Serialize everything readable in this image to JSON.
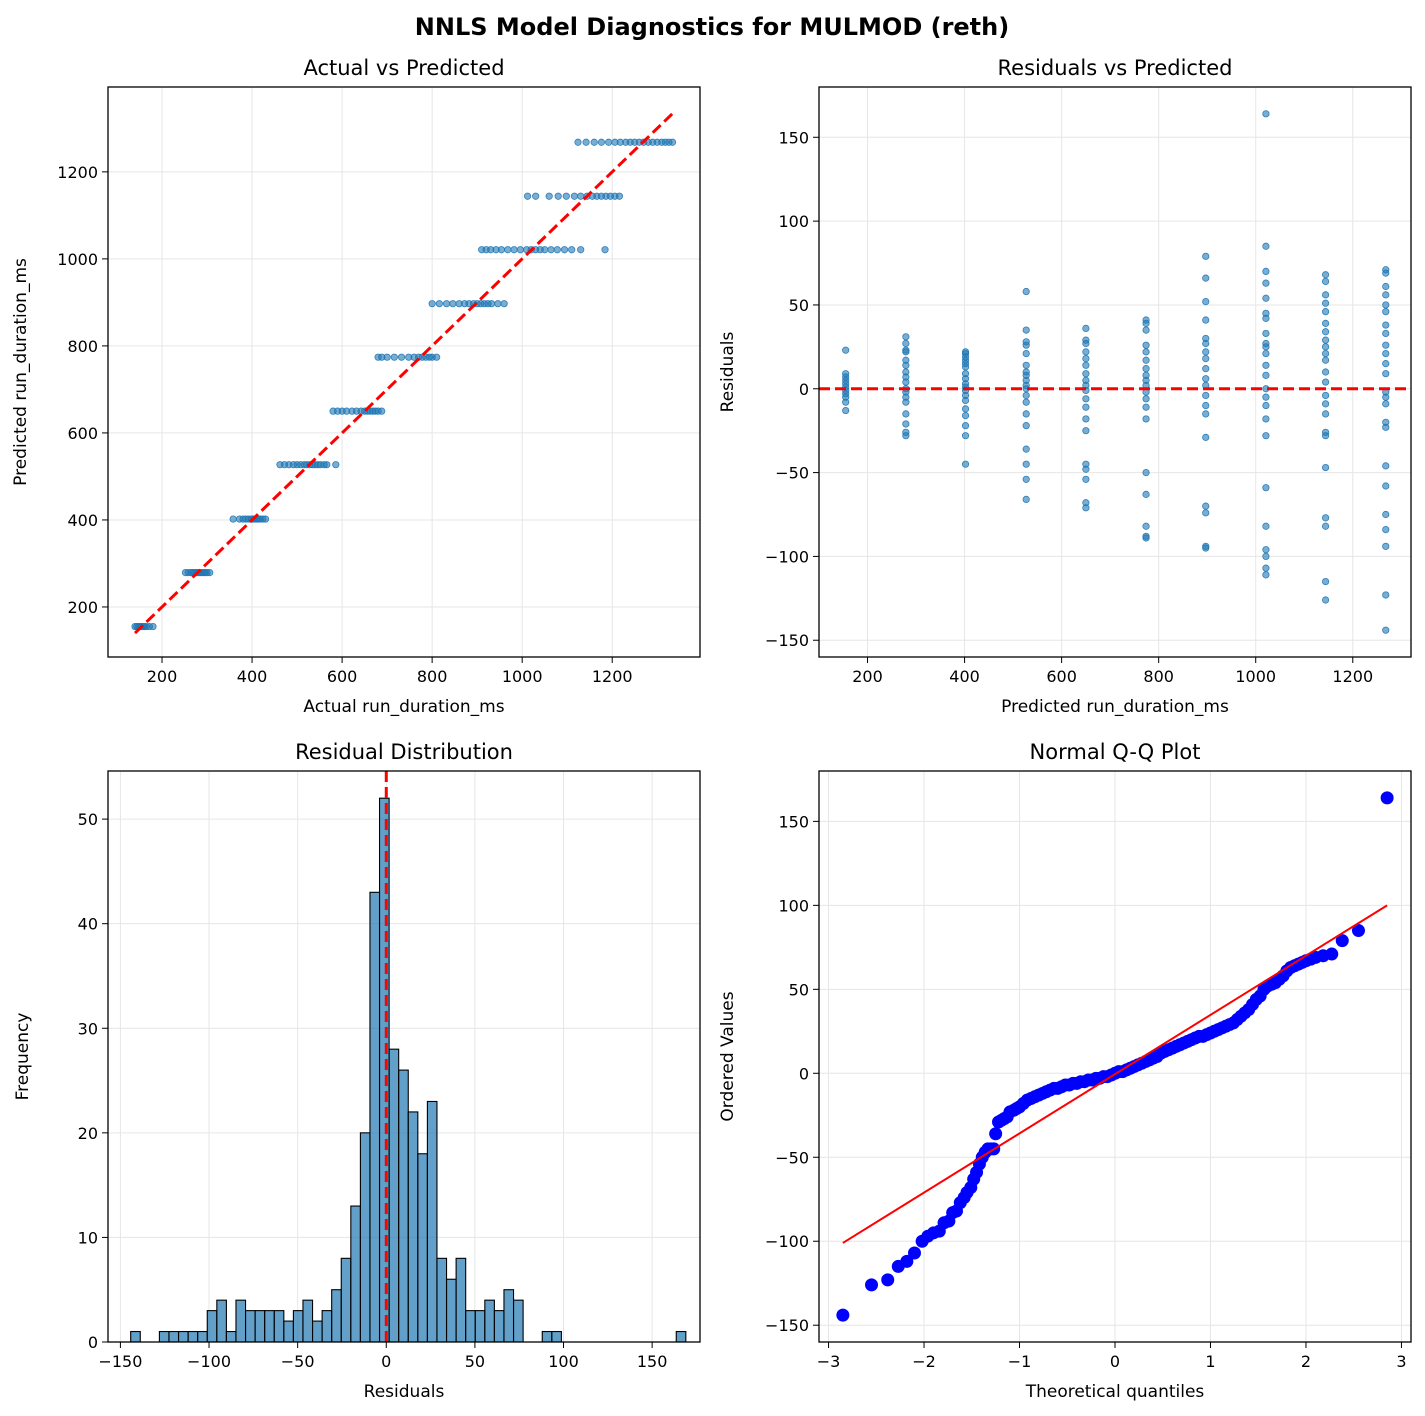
{
  "suptitle": "NNLS Model Diagnostics for MULMOD (reth)",
  "colors": {
    "scatter": "#1f77b4",
    "ref": "#ff0000",
    "qq_points": "#0000ff",
    "grid": "#e6e6e6"
  },
  "chart_data": [
    {
      "type": "scatter",
      "title": "Actual vs Predicted",
      "xlabel": "Actual run_duration_ms",
      "ylabel": "Predicted run_duration_ms",
      "xlim": [
        80,
        1395
      ],
      "ylim": [
        85,
        1395
      ],
      "xticks": [
        200,
        400,
        600,
        800,
        1000,
        1200
      ],
      "yticks": [
        200,
        400,
        600,
        800,
        1000,
        1200
      ],
      "reference_line": {
        "style": "dashed",
        "points": [
          [
            140,
            140
          ],
          [
            1340,
            1340
          ]
        ]
      },
      "level_groups": [
        {
          "y": 155,
          "x": [
            140,
            144,
            148,
            151,
            155,
            158,
            161,
            165,
            172,
            180
          ]
        },
        {
          "y": 279,
          "x": [
            252,
            258,
            264,
            268,
            272,
            276,
            280,
            284,
            288,
            292,
            296,
            300,
            306
          ]
        },
        {
          "y": 402,
          "x": [
            358,
            372,
            380,
            386,
            392,
            398,
            402,
            406,
            410,
            414,
            418,
            424,
            430
          ]
        },
        {
          "y": 527,
          "x": [
            462,
            472,
            482,
            492,
            500,
            508,
            516,
            522,
            528,
            534,
            540,
            546,
            552,
            560,
            566,
            586
          ]
        },
        {
          "y": 650,
          "x": [
            580,
            590,
            600,
            610,
            622,
            632,
            642,
            650,
            656,
            662,
            668,
            674,
            680,
            688
          ]
        },
        {
          "y": 774,
          "x": [
            680,
            688,
            700,
            716,
            732,
            748,
            760,
            770,
            778,
            786,
            794,
            800,
            810
          ]
        },
        {
          "y": 897,
          "x": [
            800,
            816,
            832,
            846,
            860,
            872,
            882,
            892,
            900,
            908,
            916,
            924,
            932,
            946,
            960
          ]
        },
        {
          "y": 1021,
          "x": [
            910,
            920,
            930,
            942,
            954,
            968,
            982,
            996,
            1010,
            1020,
            1030,
            1040,
            1050,
            1064,
            1078,
            1094,
            1110,
            1130,
            1184
          ]
        },
        {
          "y": 1144,
          "x": [
            1012,
            1030,
            1060,
            1080,
            1098,
            1116,
            1130,
            1144,
            1156,
            1166,
            1176,
            1186,
            1196,
            1206,
            1216
          ]
        },
        {
          "y": 1268,
          "x": [
            1124,
            1142,
            1160,
            1176,
            1192,
            1206,
            1218,
            1230,
            1240,
            1250,
            1260,
            1270,
            1280,
            1290,
            1300,
            1310,
            1318,
            1326,
            1334
          ]
        }
      ]
    },
    {
      "type": "scatter",
      "title": "Residuals vs Predicted",
      "xlabel": "Predicted run_duration_ms",
      "ylabel": "Residuals",
      "xlim": [
        100,
        1320
      ],
      "ylim": [
        -160,
        180
      ],
      "xticks": [
        200,
        400,
        600,
        800,
        1000,
        1200
      ],
      "yticks": [
        -150,
        -100,
        -50,
        0,
        50,
        100,
        150
      ],
      "reference_line": {
        "style": "dashed",
        "y": 0
      },
      "columns": [
        {
          "x": 155,
          "residuals": [
            23,
            9,
            7,
            5,
            3,
            1,
            -1,
            -3,
            -5,
            -8,
            -13
          ]
        },
        {
          "x": 279,
          "residuals": [
            31,
            27,
            23,
            22,
            17,
            14,
            10,
            7,
            4,
            0,
            -2,
            -5,
            -8,
            -15,
            -21,
            -26,
            -28
          ]
        },
        {
          "x": 402,
          "residuals": [
            22,
            21,
            19,
            17,
            15,
            13,
            9,
            6,
            3,
            1,
            -1,
            -4,
            -7,
            -12,
            -16,
            -22,
            -28,
            -45
          ]
        },
        {
          "x": 527,
          "residuals": [
            58,
            35,
            28,
            26,
            21,
            14,
            10,
            8,
            5,
            2,
            0,
            -4,
            -8,
            -15,
            -22,
            -36,
            -45,
            -54,
            -66
          ]
        },
        {
          "x": 650,
          "residuals": [
            36,
            29,
            27,
            22,
            18,
            14,
            9,
            5,
            2,
            -1,
            -6,
            -11,
            -18,
            -25,
            -45,
            -48,
            -54,
            -68,
            -71
          ]
        },
        {
          "x": 774,
          "residuals": [
            41,
            39,
            35,
            26,
            22,
            17,
            12,
            8,
            5,
            2,
            -2,
            -6,
            -11,
            -18,
            -50,
            -63,
            -82,
            -88,
            -89
          ]
        },
        {
          "x": 897,
          "residuals": [
            79,
            66,
            52,
            41,
            30,
            27,
            22,
            18,
            12,
            6,
            2,
            -4,
            -10,
            -15,
            -29,
            -70,
            -74,
            -94,
            -95
          ]
        },
        {
          "x": 1021,
          "residuals": [
            164,
            85,
            70,
            63,
            54,
            45,
            42,
            33,
            27,
            25,
            21,
            14,
            8,
            0,
            -5,
            -10,
            -18,
            -28,
            -59,
            -82,
            -96,
            -100,
            -107,
            -111
          ]
        },
        {
          "x": 1144,
          "residuals": [
            68,
            64,
            56,
            51,
            46,
            39,
            34,
            29,
            25,
            21,
            17,
            10,
            4,
            -4,
            -9,
            -15,
            -26,
            -28,
            -47,
            -77,
            -82,
            -115,
            -126
          ]
        },
        {
          "x": 1268,
          "residuals": [
            71,
            69,
            61,
            56,
            50,
            46,
            38,
            33,
            26,
            21,
            15,
            9,
            -2,
            -5,
            -9,
            -20,
            -23,
            -46,
            -58,
            -75,
            -84,
            -94,
            -123,
            -144
          ]
        }
      ]
    },
    {
      "type": "bar",
      "title": "Residual Distribution",
      "xlabel": "Residuals",
      "ylabel": "Frequency",
      "xlim": [
        -157,
        177
      ],
      "ylim": [
        0,
        54.6
      ],
      "xticks": [
        -150,
        -100,
        -50,
        0,
        50,
        100,
        150
      ],
      "yticks": [
        0,
        10,
        20,
        30,
        40,
        50
      ],
      "bin_start": -144.2,
      "bin_width": 5.4,
      "counts": [
        1,
        0,
        0,
        1,
        1,
        1,
        1,
        1,
        3,
        4,
        1,
        4,
        3,
        3,
        3,
        3,
        2,
        3,
        4,
        2,
        3,
        5,
        8,
        13,
        20,
        43,
        52,
        28,
        26,
        22,
        18,
        23,
        8,
        6,
        8,
        3,
        3,
        4,
        3,
        5,
        4,
        0,
        0,
        1,
        1,
        0,
        0,
        0,
        0,
        0,
        0,
        0,
        0,
        0,
        0,
        0,
        0,
        1
      ],
      "reference_line": {
        "style": "dashed",
        "x": 0
      }
    },
    {
      "type": "scatter",
      "title": "Normal Q-Q Plot",
      "xlabel": "Theoretical quantiles",
      "ylabel": "Ordered Values",
      "xlim": [
        -3.1,
        3.1
      ],
      "ylim": [
        -160,
        180
      ],
      "xticks": [
        -3,
        -2,
        -1,
        0,
        1,
        2,
        3
      ],
      "yticks": [
        -150,
        -100,
        -50,
        0,
        50,
        100,
        150
      ],
      "fit_line": {
        "points": [
          [
            -2.85,
            -101
          ],
          [
            2.85,
            100
          ]
        ]
      },
      "points": [
        [
          -2.85,
          -144
        ],
        [
          -2.55,
          -126
        ],
        [
          -2.38,
          -123
        ],
        [
          -2.27,
          -115
        ],
        [
          -2.18,
          -112
        ],
        [
          -2.1,
          -107
        ],
        [
          -2.02,
          -100
        ],
        [
          -1.96,
          -97
        ],
        [
          -1.9,
          -95
        ],
        [
          -1.84,
          -94
        ],
        [
          -1.79,
          -89
        ],
        [
          -1.74,
          -88
        ],
        [
          -1.7,
          -83
        ],
        [
          -1.66,
          -82
        ],
        [
          -1.62,
          -77
        ],
        [
          -1.58,
          -74
        ],
        [
          -1.55,
          -71
        ],
        [
          -1.51,
          -68
        ],
        [
          -1.48,
          -63
        ],
        [
          -1.45,
          -59
        ],
        [
          -1.42,
          -54
        ],
        [
          -1.39,
          -50
        ],
        [
          -1.36,
          -47
        ],
        [
          -1.33,
          -45
        ],
        [
          -1.3,
          -45
        ],
        [
          -1.27,
          -45
        ],
        [
          -1.25,
          -36
        ],
        [
          -1.22,
          -29
        ],
        [
          -1.19,
          -28
        ],
        [
          -1.16,
          -27
        ],
        [
          -1.13,
          -26
        ],
        [
          -1.1,
          -23
        ],
        [
          -1.06,
          -22
        ],
        [
          -1.03,
          -21
        ],
        [
          -1.0,
          -20
        ],
        [
          -0.96,
          -18
        ],
        [
          -0.92,
          -16
        ],
        [
          -0.88,
          -15
        ],
        [
          -0.84,
          -14
        ],
        [
          -0.8,
          -13
        ],
        [
          -0.76,
          -12
        ],
        [
          -0.72,
          -11
        ],
        [
          -0.68,
          -10
        ],
        [
          -0.64,
          -9
        ],
        [
          -0.6,
          -9
        ],
        [
          -0.56,
          -8
        ],
        [
          -0.52,
          -7
        ],
        [
          -0.48,
          -7
        ],
        [
          -0.44,
          -6
        ],
        [
          -0.4,
          -6
        ],
        [
          -0.36,
          -5
        ],
        [
          -0.32,
          -5
        ],
        [
          -0.28,
          -4
        ],
        [
          -0.24,
          -4
        ],
        [
          -0.2,
          -3
        ],
        [
          -0.16,
          -3
        ],
        [
          -0.12,
          -2
        ],
        [
          -0.08,
          -2
        ],
        [
          -0.04,
          -1
        ],
        [
          0.0,
          0
        ],
        [
          0.04,
          1
        ],
        [
          0.08,
          1
        ],
        [
          0.12,
          2
        ],
        [
          0.16,
          3
        ],
        [
          0.2,
          4
        ],
        [
          0.24,
          5
        ],
        [
          0.28,
          6
        ],
        [
          0.32,
          7
        ],
        [
          0.36,
          8
        ],
        [
          0.4,
          9
        ],
        [
          0.44,
          10
        ],
        [
          0.48,
          12
        ],
        [
          0.52,
          13
        ],
        [
          0.56,
          14
        ],
        [
          0.6,
          15
        ],
        [
          0.64,
          16
        ],
        [
          0.68,
          17
        ],
        [
          0.72,
          18
        ],
        [
          0.76,
          19
        ],
        [
          0.8,
          20
        ],
        [
          0.84,
          21
        ],
        [
          0.88,
          22
        ],
        [
          0.92,
          22
        ],
        [
          0.96,
          23
        ],
        [
          1.0,
          24
        ],
        [
          1.04,
          25
        ],
        [
          1.08,
          26
        ],
        [
          1.12,
          27
        ],
        [
          1.16,
          28
        ],
        [
          1.2,
          29
        ],
        [
          1.24,
          30
        ],
        [
          1.28,
          32
        ],
        [
          1.32,
          34
        ],
        [
          1.36,
          36
        ],
        [
          1.4,
          38
        ],
        [
          1.44,
          41
        ],
        [
          1.48,
          44
        ],
        [
          1.52,
          46
        ],
        [
          1.56,
          50
        ],
        [
          1.6,
          52
        ],
        [
          1.64,
          53
        ],
        [
          1.68,
          54
        ],
        [
          1.72,
          56
        ],
        [
          1.76,
          58
        ],
        [
          1.8,
          61
        ],
        [
          1.84,
          63
        ],
        [
          1.88,
          64
        ],
        [
          1.92,
          65
        ],
        [
          1.96,
          66
        ],
        [
          2.0,
          67
        ],
        [
          2.05,
          68
        ],
        [
          2.1,
          69
        ],
        [
          2.18,
          70
        ],
        [
          2.27,
          71
        ],
        [
          2.38,
          79
        ],
        [
          2.55,
          85
        ],
        [
          2.85,
          164
        ]
      ]
    }
  ]
}
